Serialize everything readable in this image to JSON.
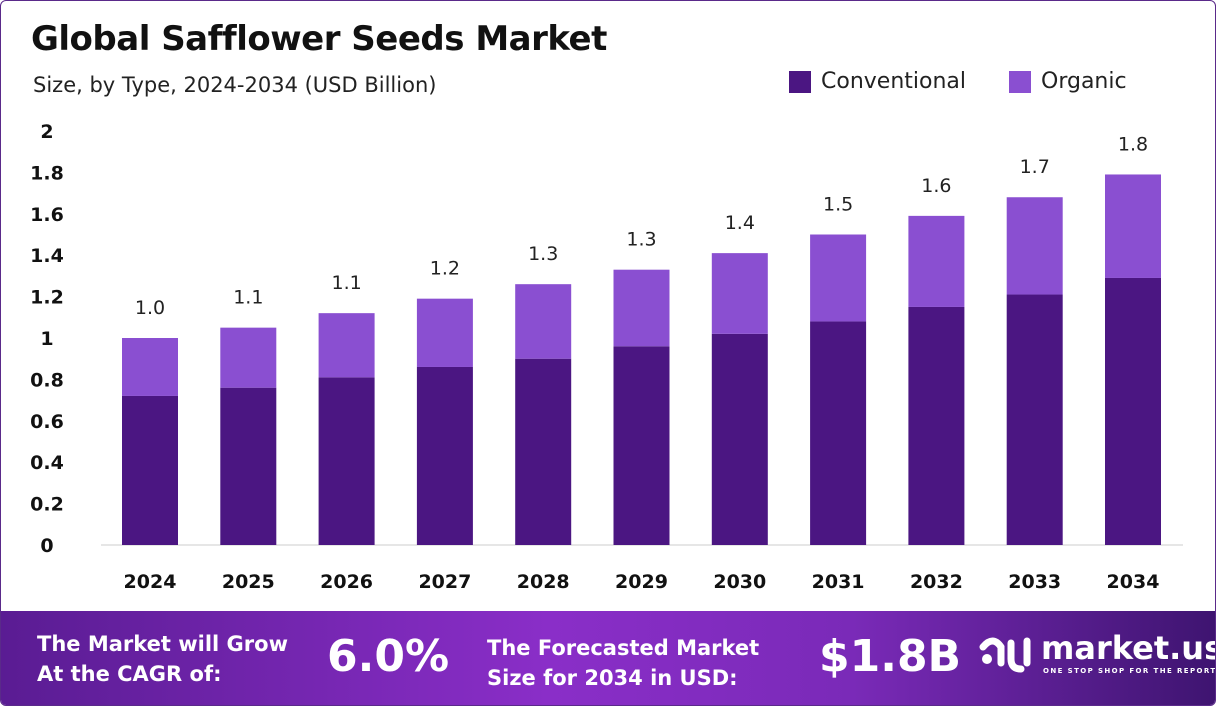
{
  "chart_data": {
    "type": "bar",
    "stacked": true,
    "title": "Global Safflower Seeds Market",
    "subtitle": "Size, by Type, 2024-2034 (USD Billion)",
    "categories": [
      "2024",
      "2025",
      "2026",
      "2027",
      "2028",
      "2029",
      "2030",
      "2031",
      "2032",
      "2033",
      "2034"
    ],
    "series": [
      {
        "name": "Conventional",
        "color": "#4b1682",
        "values": [
          0.72,
          0.76,
          0.81,
          0.86,
          0.9,
          0.96,
          1.02,
          1.08,
          1.15,
          1.21,
          1.29
        ]
      },
      {
        "name": "Organic",
        "color": "#8a4fd1",
        "values": [
          0.28,
          0.29,
          0.31,
          0.33,
          0.36,
          0.37,
          0.39,
          0.42,
          0.44,
          0.47,
          0.5
        ]
      }
    ],
    "data_labels": [
      "1.0",
      "1.1",
      "1.1",
      "1.2",
      "1.3",
      "1.3",
      "1.4",
      "1.5",
      "1.6",
      "1.7",
      "1.8"
    ],
    "ylim": [
      0,
      2
    ],
    "yticks": [
      "0",
      "0.2",
      "0.4",
      "0.6",
      "0.8",
      "1",
      "1.2",
      "1.4",
      "1.6",
      "1.8",
      "2"
    ],
    "grid": false,
    "legend": "top-right"
  },
  "footer": {
    "cagr_label_1": "The Market will Grow",
    "cagr_label_2": "At the CAGR of:",
    "cagr_value": "6.0%",
    "forecast_label_1": "The Forecasted Market",
    "forecast_label_2": "Size for 2034 in USD:",
    "forecast_value": "$1.8B",
    "logo_name": "market.us",
    "logo_tagline": "ONE STOP SHOP FOR THE REPORTS"
  }
}
